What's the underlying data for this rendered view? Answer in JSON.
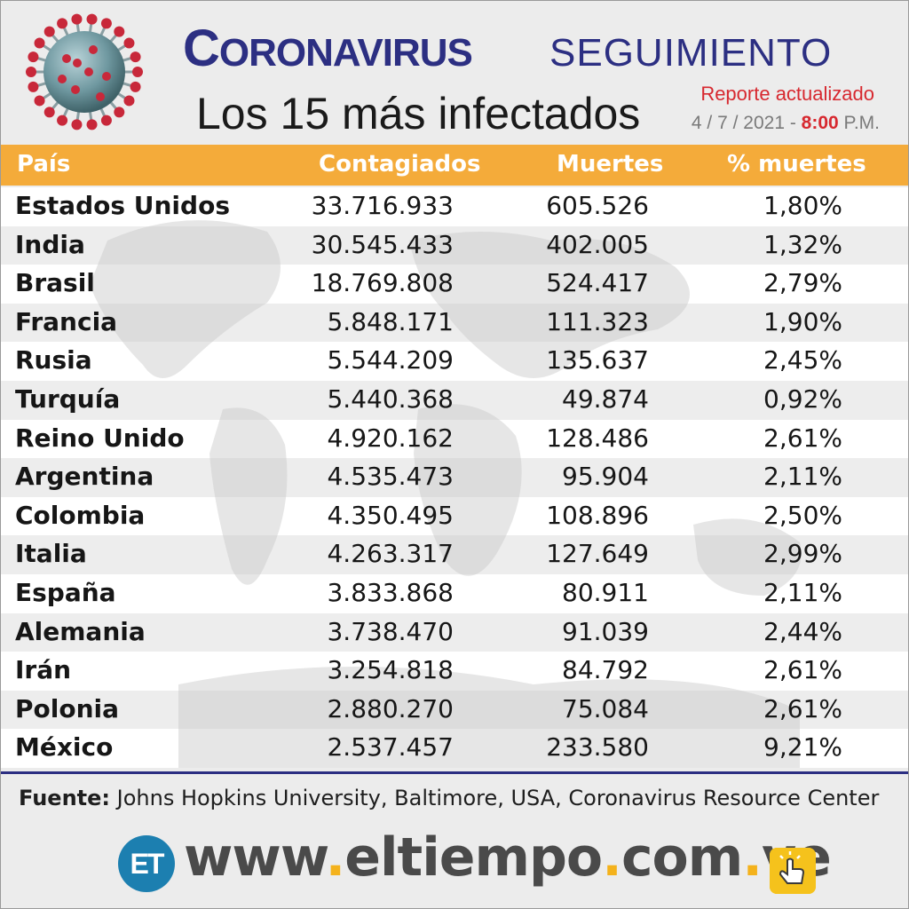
{
  "header": {
    "title_main": "Coronavirus",
    "title_sub": "SEGUIMIENTO",
    "subtitle_pre": "Los ",
    "subtitle_num": "15",
    "subtitle_post": " más infectados",
    "report_label": "Reporte actualizado",
    "date": "4 / 7 / 2021 - ",
    "time": "8:00",
    "time_suffix": " P.M."
  },
  "table": {
    "columns": [
      "País",
      "Contagiados",
      "Muertes",
      "% muertes"
    ],
    "rows": [
      [
        "Estados Unidos",
        "33.716.933",
        "605.526",
        "1,80%"
      ],
      [
        "India",
        "30.545.433",
        "402.005",
        "1,32%"
      ],
      [
        "Brasil",
        "18.769.808",
        "524.417",
        "2,79%"
      ],
      [
        "Francia",
        "5.848.171",
        "111.323",
        "1,90%"
      ],
      [
        "Rusia",
        "5.544.209",
        "135.637",
        "2,45%"
      ],
      [
        "Turquía",
        "5.440.368",
        "49.874",
        "0,92%"
      ],
      [
        "Reino Unido",
        "4.920.162",
        "128.486",
        "2,61%"
      ],
      [
        "Argentina",
        "4.535.473",
        "95.904",
        "2,11%"
      ],
      [
        "Colombia",
        "4.350.495",
        "108.896",
        "2,50%"
      ],
      [
        "Italia",
        "4.263.317",
        "127.649",
        "2,99%"
      ],
      [
        "España",
        "3.833.868",
        "80.911",
        "2,11%"
      ],
      [
        "Alemania",
        "3.738.470",
        "91.039",
        "2,44%"
      ],
      [
        "Irán",
        "3.254.818",
        "84.792",
        "2,61%"
      ],
      [
        "Polonia",
        "2.880.270",
        "75.084",
        "2,61%"
      ],
      [
        "México",
        "2.537.457",
        "233.580",
        "9,21%"
      ]
    ]
  },
  "footer": {
    "source_label": "Fuente:",
    "source_text": " Johns Hopkins University, Baltimore, USA, Coronavirus Resource Center",
    "logo_text": "ET",
    "url_parts": [
      "www",
      ".",
      "eltiempo",
      ".",
      "com",
      ".",
      "ve"
    ]
  },
  "colors": {
    "title_blue": "#2c2f82",
    "header_orange": "#f4ab3a",
    "accent_red": "#d7282f",
    "logo_blue": "#1c7fb0",
    "dot_yellow": "#f4b21c"
  },
  "icons": [
    "coronavirus-icon",
    "world-map-watermark",
    "click-hand-icon"
  ]
}
